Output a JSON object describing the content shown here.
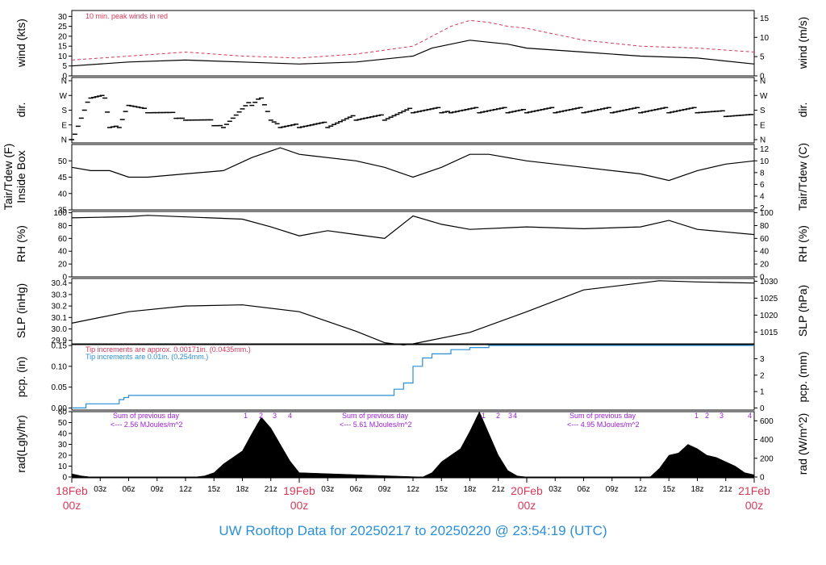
{
  "title": "UW Rooftop Data for 20250217  to  20250220 @ 23:54:19  (UTC)",
  "colors": {
    "red": "#d23a5a",
    "blue": "#2b8fd6",
    "purple": "#9b1fd6",
    "black": "#000000"
  },
  "panels": {
    "wind": {
      "ylabel_left": "wind (kts)",
      "ylabel_right": "wind (m/s)",
      "left_ticks": [
        "0",
        "5",
        "10",
        "15",
        "20",
        "25",
        "30"
      ],
      "right_ticks": [
        "0",
        "5",
        "10",
        "15"
      ],
      "note": "10 min. peak winds in red"
    },
    "dir": {
      "ylabel_left": "dir.",
      "ylabel_right": "dir.",
      "ticks": [
        "N",
        "E",
        "S",
        "W",
        "N"
      ]
    },
    "temp": {
      "ylabel_left_line1": "Tair/Tdew (F)",
      "ylabel_left_line2": "Inside Box",
      "ylabel_right": "Tair/Tdew (C)",
      "left_ticks": [
        "35",
        "40",
        "45",
        "50"
      ],
      "right_ticks": [
        "2",
        "4",
        "6",
        "8",
        "10",
        "12"
      ]
    },
    "rh": {
      "ylabel_left": "RH (%)",
      "ylabel_right": "RH (%)",
      "ticks": [
        "0",
        "20",
        "40",
        "60",
        "80",
        "100"
      ]
    },
    "slp": {
      "ylabel_left": "SLP (inHg)",
      "ylabel_right": "SLP (hPa)",
      "left_ticks": [
        "29.9",
        "30.0",
        "30.1",
        "30.2",
        "30.3",
        "30.4"
      ],
      "right_ticks": [
        "1015",
        "1020",
        "1025",
        "1030"
      ]
    },
    "pcp": {
      "ylabel_left": "pcp. (in)",
      "ylabel_right": "pcp. (mm)",
      "left_ticks": [
        "0.00",
        "0.05",
        "0.10",
        "0.15"
      ],
      "right_ticks": [
        "0",
        "1",
        "2",
        "3"
      ],
      "note_red": "Tip increments are approx. 0.00171in. (0.0435mm.)",
      "note_blue": "Tip increments are 0.01in. (0.254mm.)"
    },
    "rad": {
      "ylabel_left": "rad(Lgly/hr)",
      "ylabel_right": "rad (W/m^2)",
      "left_ticks": [
        "0",
        "10",
        "20",
        "30",
        "40",
        "50",
        "60"
      ],
      "right_ticks": [
        "0",
        "200",
        "400",
        "600"
      ],
      "day_notes": [
        {
          "line1": "Sum of previous day",
          "line2": "<--- 2.56 MJoules/m^2"
        },
        {
          "line1": "Sum of previous day",
          "line2": "<--- 5.61 MJoules/m^2"
        },
        {
          "line1": "Sum of previous day",
          "line2": "<--- 4.95 MJoules/m^2"
        }
      ],
      "peak_labels": [
        "1",
        "2",
        "3",
        "4",
        "5",
        "1",
        "2",
        "3",
        "4",
        "1",
        "2",
        "3",
        "4"
      ]
    }
  },
  "x_axis": {
    "hour_ticks": [
      "03z",
      "06z",
      "09z",
      "12z",
      "15z",
      "18z",
      "21z",
      "03z",
      "06z",
      "09z",
      "12z",
      "15z",
      "18z",
      "21z",
      "03z",
      "06z",
      "09z",
      "12z",
      "15z",
      "18z",
      "21z"
    ],
    "day_ticks": [
      {
        "date": "18Feb",
        "time": "00z"
      },
      {
        "date": "19Feb",
        "time": "00z"
      },
      {
        "date": "20Feb",
        "time": "00z"
      },
      {
        "date": "21Feb",
        "time": "00z"
      }
    ]
  },
  "chart_data": {
    "type": "line",
    "x_units": "hours since 18Feb 00z",
    "xlim": [
      0,
      72
    ],
    "series": [
      {
        "name": "10 min. peak winds",
        "panel": "wind",
        "units": "kts",
        "x": [
          0,
          6,
          12,
          18,
          24,
          30,
          36,
          38,
          40,
          42,
          44,
          46,
          48,
          54,
          60,
          66,
          72
        ],
        "values": [
          8,
          10,
          12,
          10,
          9,
          11,
          15,
          20,
          25,
          28,
          27,
          25,
          24,
          18,
          15,
          14,
          12
        ]
      },
      {
        "name": "wind",
        "panel": "wind",
        "units": "kts",
        "x": [
          0,
          6,
          12,
          18,
          24,
          30,
          36,
          38,
          40,
          42,
          44,
          46,
          48,
          54,
          60,
          66,
          72
        ],
        "values": [
          5,
          7,
          8,
          7,
          6,
          7,
          10,
          14,
          16,
          18,
          17,
          16,
          14,
          12,
          10,
          9,
          6
        ]
      },
      {
        "panel": "dir",
        "units": "direction",
        "x": [
          0,
          2,
          3.5,
          4,
          5,
          6,
          8,
          12,
          16,
          19,
          20,
          21,
          22,
          24,
          27,
          30,
          33,
          36,
          40,
          46,
          48,
          54,
          60,
          66,
          72
        ],
        "values": [
          "N",
          "W",
          "W",
          "E",
          "E",
          "SW",
          "S",
          "SE",
          "E",
          "SW",
          "W",
          "SE",
          "E",
          "E",
          "E",
          "SE",
          "SE",
          "S",
          "S",
          "S",
          "S",
          "S",
          "S",
          "S",
          "SE"
        ]
      },
      {
        "panel": "temp",
        "units": "F",
        "x": [
          0,
          2,
          4,
          6,
          8,
          12,
          16,
          19,
          21,
          22,
          24,
          30,
          33,
          36,
          39,
          42,
          44,
          48,
          54,
          60,
          63,
          66,
          69,
          72
        ],
        "values": [
          48,
          47,
          47,
          45,
          45,
          46,
          47,
          51,
          53,
          54,
          52,
          50,
          48,
          45,
          48,
          52,
          52,
          50,
          48,
          46,
          44,
          47,
          49,
          50
        ]
      },
      {
        "panel": "rh",
        "units": "%",
        "x": [
          0,
          6,
          8,
          18,
          21,
          24,
          27,
          30,
          33,
          36,
          39,
          42,
          48,
          54,
          60,
          63,
          66,
          72
        ],
        "values": [
          92,
          94,
          96,
          90,
          78,
          64,
          72,
          66,
          60,
          95,
          82,
          74,
          78,
          75,
          78,
          88,
          74,
          66
        ]
      },
      {
        "panel": "slp",
        "units": "inHg",
        "x": [
          0,
          6,
          12,
          18,
          24,
          30,
          33,
          35,
          36,
          42,
          48,
          54,
          60,
          62,
          66,
          72
        ],
        "values": [
          30.05,
          30.15,
          30.2,
          30.21,
          30.15,
          29.98,
          29.88,
          29.86,
          29.87,
          29.97,
          30.15,
          30.34,
          30.4,
          30.42,
          30.41,
          30.4
        ]
      },
      {
        "name": "pcp",
        "panel": "pcp",
        "units": "in",
        "x": [
          0,
          1.5,
          5,
          5.5,
          6,
          33,
          34,
          35,
          36,
          37,
          38,
          40,
          41,
          42,
          44,
          72
        ],
        "values": [
          0,
          0.01,
          0.02,
          0.025,
          0.03,
          0.03,
          0.045,
          0.06,
          0.1,
          0.12,
          0.13,
          0.14,
          0.14,
          0.145,
          0.15,
          0.15
        ]
      },
      {
        "panel": "rad",
        "units": "Lgly/hr",
        "x": [
          0,
          0.5,
          1,
          2,
          13,
          14,
          15,
          16,
          17,
          18,
          19,
          20,
          21,
          22,
          23,
          24,
          37,
          38,
          39,
          40,
          41,
          42,
          43,
          44,
          45,
          46,
          47,
          48,
          61,
          62,
          63,
          64,
          65,
          66,
          67,
          68,
          69,
          70,
          71,
          72
        ],
        "values": [
          3,
          2,
          1,
          0,
          0,
          1,
          4,
          12,
          18,
          24,
          40,
          55,
          45,
          30,
          15,
          4,
          0,
          4,
          14,
          20,
          26,
          42,
          60,
          40,
          20,
          6,
          1,
          0,
          0,
          8,
          20,
          22,
          30,
          26,
          20,
          18,
          14,
          10,
          4,
          2
        ]
      }
    ],
    "rad_day_totals_MJ_per_m2": [
      2.56,
      5.61,
      4.95
    ]
  }
}
